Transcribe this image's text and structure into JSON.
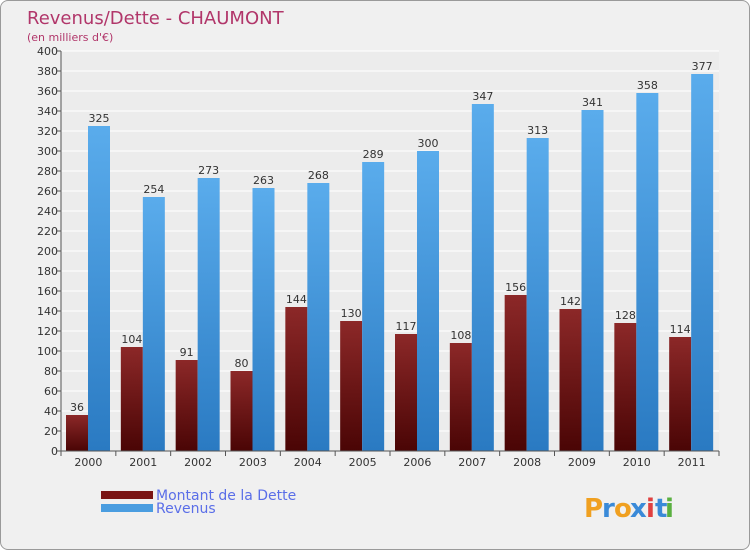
{
  "chart_data": {
    "type": "bar",
    "title": "Revenus/Dette - CHAUMONT",
    "subtitle": "(en milliers d'€)",
    "categories": [
      "2000",
      "2001",
      "2002",
      "2003",
      "2004",
      "2005",
      "2006",
      "2007",
      "2008",
      "2009",
      "2010",
      "2011"
    ],
    "series": [
      {
        "name": "Montant de la Dette",
        "color": "#7a1515",
        "values": [
          36,
          104,
          91,
          80,
          144,
          130,
          117,
          108,
          156,
          142,
          128,
          114
        ]
      },
      {
        "name": "Revenus",
        "color": "#4a9de0",
        "values": [
          325,
          254,
          273,
          263,
          268,
          289,
          300,
          347,
          313,
          341,
          358,
          377
        ]
      }
    ],
    "ylim": [
      0,
      400
    ],
    "ytick_step": 20,
    "grid": true,
    "legend_position": "bottom-left"
  },
  "logo": {
    "text": "Proxiti",
    "letters": [
      "P",
      "r",
      "o",
      "x",
      "i",
      "t",
      "i"
    ],
    "colors": [
      "#f0a020",
      "#3a8ad8",
      "#f0a020",
      "#3a8ad8",
      "#e04040",
      "#3a8ad8",
      "#5ab040"
    ]
  }
}
